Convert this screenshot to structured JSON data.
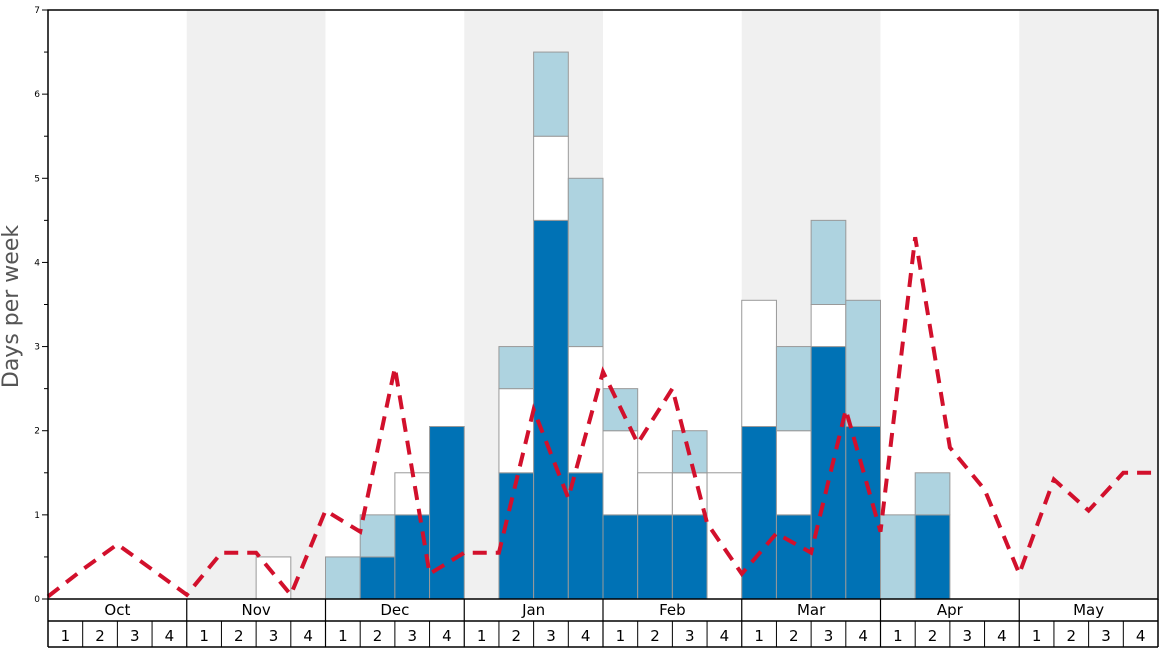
{
  "chart_data": {
    "type": "bar",
    "ylabel": "Days per week",
    "ylim": [
      0,
      7
    ],
    "yticks": [
      "0",
      "1",
      "2",
      "3",
      "4",
      "5",
      "6",
      "7"
    ],
    "months": [
      "Oct",
      "Nov",
      "Dec",
      "Jan",
      "Feb",
      "Mar",
      "Apr",
      "May"
    ],
    "weeks": [
      "1",
      "2",
      "3",
      "4"
    ],
    "stack_segments": [
      "dark-blue",
      "white",
      "light-blue"
    ],
    "series_colors": {
      "dark-blue": "#0072b5",
      "white": "#ffffff",
      "light-blue": "#aed3e0",
      "average-line": "#d2102c",
      "band": "#f0f0f0"
    },
    "bars": [
      [
        0,
        0,
        0
      ],
      [
        0,
        0,
        0
      ],
      [
        0,
        0,
        0
      ],
      [
        0,
        0,
        0
      ],
      [
        0,
        0,
        0
      ],
      [
        0,
        0,
        0
      ],
      [
        0,
        0.5,
        0
      ],
      [
        0,
        0,
        0
      ],
      [
        0,
        0,
        0.5
      ],
      [
        0.5,
        0,
        0.5
      ],
      [
        1,
        0.5,
        0
      ],
      [
        2.05,
        0,
        0
      ],
      [
        0,
        0,
        0
      ],
      [
        1.5,
        1,
        0.5
      ],
      [
        4.5,
        1,
        1
      ],
      [
        1.5,
        1.5,
        2
      ],
      [
        1,
        1,
        0.5
      ],
      [
        1,
        0.5,
        0
      ],
      [
        1,
        0.5,
        0.5
      ],
      [
        0,
        1.5,
        0
      ],
      [
        2.05,
        1.5,
        0
      ],
      [
        1,
        1,
        1
      ],
      [
        3,
        0.5,
        1
      ],
      [
        2.05,
        0,
        1.5
      ],
      [
        0,
        0,
        1
      ],
      [
        1,
        0,
        0.5
      ],
      [
        0,
        0,
        0
      ],
      [
        0,
        0,
        0
      ],
      [
        0,
        0,
        0
      ],
      [
        0,
        0,
        0
      ],
      [
        0,
        0,
        0
      ],
      [
        0,
        0,
        0
      ]
    ],
    "average": [
      0.03,
      0.35,
      0.65,
      0.35,
      0.05,
      0.55,
      0.55,
      0.05,
      1.05,
      0.8,
      2.75,
      0.3,
      0.55,
      0.55,
      2.25,
      1.2,
      2.7,
      1.85,
      2.5,
      0.9,
      0.3,
      0.78,
      0.55,
      2.25,
      0.8,
      4.3,
      1.8,
      1.3,
      0.3,
      1.42,
      1.05,
      1.5,
      1.5
    ]
  }
}
